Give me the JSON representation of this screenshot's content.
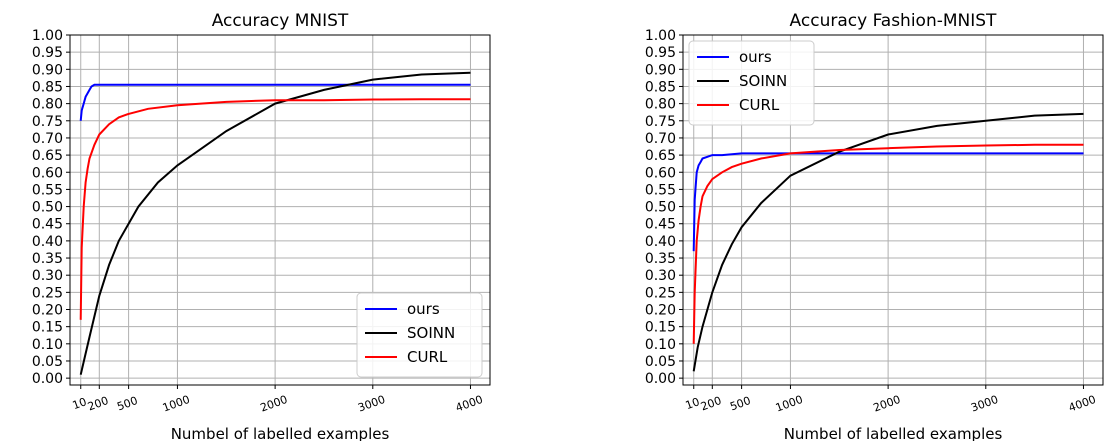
{
  "chart_data": [
    {
      "type": "line",
      "title": "Accuracy MNIST",
      "xlabel": "Numbel of labelled examples",
      "ylabel": "",
      "xlim": [
        -100,
        4200
      ],
      "ylim": [
        -0.02,
        1.0
      ],
      "yticks": [
        "0.00",
        "0.05",
        "0.10",
        "0.15",
        "0.20",
        "0.25",
        "0.30",
        "0.35",
        "0.40",
        "0.45",
        "0.50",
        "0.55",
        "0.60",
        "0.65",
        "0.70",
        "0.75",
        "0.80",
        "0.85",
        "0.90",
        "0.95",
        "1.00"
      ],
      "xticks": [
        10,
        200,
        500,
        1000,
        2000,
        3000,
        4000
      ],
      "xtick_labels": [
        "10",
        "200",
        "500",
        "1000",
        "2000",
        "3000",
        "4000"
      ],
      "grid": true,
      "legend_position": "lower-right",
      "series": [
        {
          "name": "ours",
          "color": "#0000ff",
          "x": [
            10,
            20,
            40,
            60,
            80,
            100,
            120,
            150,
            200,
            300,
            500,
            1000,
            2000,
            3000,
            4000
          ],
          "y": [
            0.75,
            0.78,
            0.8,
            0.82,
            0.83,
            0.84,
            0.85,
            0.855,
            0.855,
            0.855,
            0.855,
            0.855,
            0.855,
            0.855,
            0.855
          ]
        },
        {
          "name": "SOINN",
          "color": "#000000",
          "x": [
            10,
            50,
            100,
            200,
            300,
            400,
            500,
            600,
            800,
            1000,
            1200,
            1500,
            2000,
            2500,
            3000,
            3500,
            4000
          ],
          "y": [
            0.01,
            0.06,
            0.12,
            0.24,
            0.33,
            0.4,
            0.45,
            0.5,
            0.57,
            0.62,
            0.66,
            0.72,
            0.8,
            0.84,
            0.87,
            0.885,
            0.89
          ]
        },
        {
          "name": "CURL",
          "color": "#ff0000",
          "x": [
            10,
            20,
            40,
            60,
            80,
            100,
            150,
            200,
            300,
            400,
            500,
            700,
            1000,
            1500,
            2000,
            2500,
            3000,
            3500,
            4000
          ],
          "y": [
            0.17,
            0.38,
            0.5,
            0.57,
            0.61,
            0.64,
            0.68,
            0.71,
            0.74,
            0.76,
            0.77,
            0.785,
            0.795,
            0.805,
            0.81,
            0.81,
            0.812,
            0.813,
            0.813
          ]
        }
      ]
    },
    {
      "type": "line",
      "title": "Accuracy Fashion-MNIST",
      "xlabel": "Numbel of labelled examples",
      "ylabel": "",
      "xlim": [
        -100,
        4200
      ],
      "ylim": [
        -0.02,
        1.0
      ],
      "yticks": [
        "0.00",
        "0.05",
        "0.10",
        "0.15",
        "0.20",
        "0.25",
        "0.30",
        "0.35",
        "0.40",
        "0.45",
        "0.50",
        "0.55",
        "0.60",
        "0.65",
        "0.70",
        "0.75",
        "0.80",
        "0.85",
        "0.90",
        "0.95",
        "1.00"
      ],
      "xticks": [
        10,
        200,
        500,
        1000,
        2000,
        3000,
        4000
      ],
      "xtick_labels": [
        "10",
        "200",
        "500",
        "1000",
        "2000",
        "3000",
        "4000"
      ],
      "grid": true,
      "legend_position": "upper-left",
      "series": [
        {
          "name": "ours",
          "color": "#0000ff",
          "x": [
            10,
            20,
            40,
            60,
            80,
            100,
            150,
            200,
            300,
            500,
            1000,
            2000,
            3000,
            4000
          ],
          "y": [
            0.37,
            0.52,
            0.6,
            0.62,
            0.63,
            0.64,
            0.645,
            0.65,
            0.65,
            0.655,
            0.655,
            0.655,
            0.655,
            0.655
          ]
        },
        {
          "name": "SOINN",
          "color": "#000000",
          "x": [
            10,
            50,
            100,
            200,
            300,
            400,
            500,
            700,
            1000,
            1500,
            2000,
            2500,
            3000,
            3500,
            4000
          ],
          "y": [
            0.02,
            0.09,
            0.15,
            0.25,
            0.33,
            0.39,
            0.44,
            0.51,
            0.59,
            0.66,
            0.71,
            0.735,
            0.75,
            0.765,
            0.77
          ]
        },
        {
          "name": "CURL",
          "color": "#ff0000",
          "x": [
            10,
            20,
            40,
            60,
            80,
            100,
            150,
            200,
            300,
            400,
            500,
            700,
            1000,
            1500,
            2000,
            2500,
            3000,
            3500,
            4000
          ],
          "y": [
            0.1,
            0.25,
            0.4,
            0.46,
            0.5,
            0.53,
            0.56,
            0.58,
            0.6,
            0.615,
            0.625,
            0.64,
            0.655,
            0.665,
            0.67,
            0.675,
            0.678,
            0.68,
            0.68
          ]
        }
      ]
    }
  ]
}
